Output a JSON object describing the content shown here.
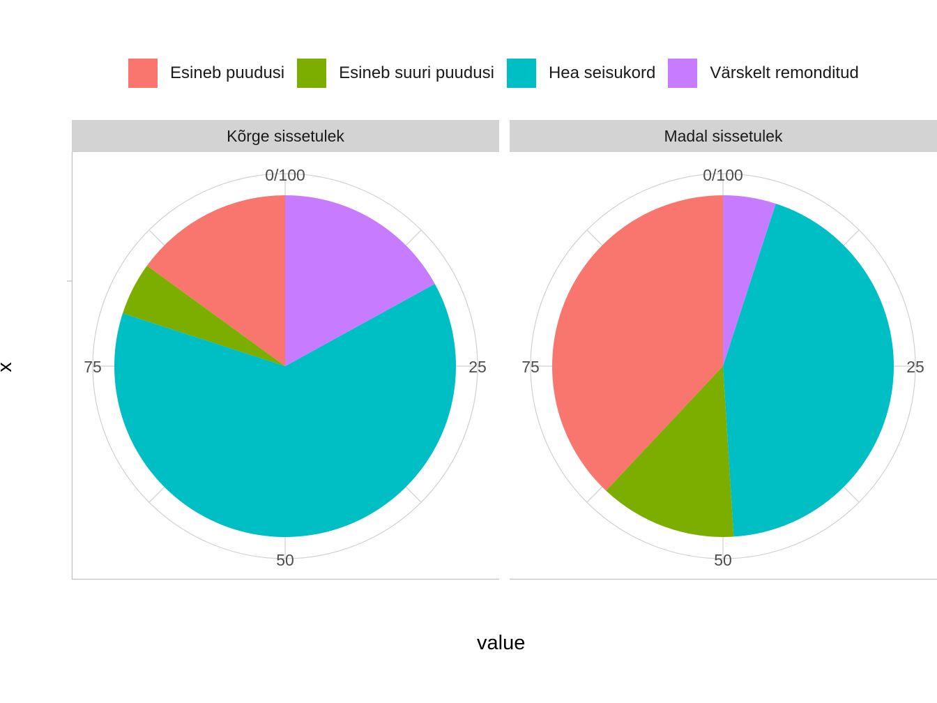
{
  "chart_data": {
    "type": "pie",
    "xlabel": "value",
    "ylabel": "x",
    "legend_position": "top",
    "theta_ticks": [
      "0/100",
      "25",
      "50",
      "75"
    ],
    "categories": [
      "Esineb puudusi",
      "Esineb suuri puudusi",
      "Hea seisukord",
      "Värskelt remonditud"
    ],
    "colors": [
      "#F8766D",
      "#7CAE00",
      "#00BFC4",
      "#C77CFF"
    ],
    "panels": [
      {
        "title": "Kõrge sissetulek",
        "values": [
          15,
          5,
          63,
          17
        ]
      },
      {
        "title": "Madal sissetulek",
        "values": [
          38,
          13,
          44,
          5
        ]
      }
    ]
  }
}
